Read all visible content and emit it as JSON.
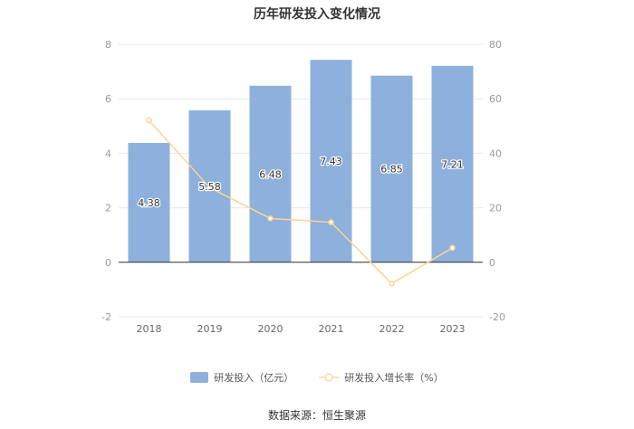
{
  "colors": {
    "bar": "#8eb0dc",
    "line": "#fdd492",
    "axis": "#999999",
    "grid": "#e6e9f0"
  },
  "chart_data": {
    "type": "bar",
    "title": "历年研发投入变化情况",
    "categories": [
      "2018",
      "2019",
      "2020",
      "2021",
      "2022",
      "2023"
    ],
    "series": [
      {
        "name": "研发投入（亿元）",
        "type": "bar",
        "axis": "left",
        "values": [
          4.38,
          5.58,
          6.48,
          7.43,
          6.85,
          7.21
        ],
        "labels": [
          "4.38",
          "5.58",
          "6.48",
          "7.43",
          "6.85",
          "7.21"
        ]
      },
      {
        "name": "研发投入增长率（%）",
        "type": "line",
        "axis": "right",
        "values": [
          52.1,
          27.4,
          16.1,
          14.7,
          -7.8,
          5.3
        ]
      }
    ],
    "left_axis": {
      "ylim": [
        -2,
        8
      ],
      "ticks": [
        "-2",
        "0",
        "2",
        "4",
        "6",
        "8"
      ]
    },
    "right_axis": {
      "ylim": [
        -20,
        80
      ],
      "ticks": [
        "-20",
        "0",
        "20",
        "40",
        "60",
        "80"
      ]
    },
    "grid": true,
    "legend_position": "bottom"
  },
  "source": "数据来源：恒生聚源"
}
